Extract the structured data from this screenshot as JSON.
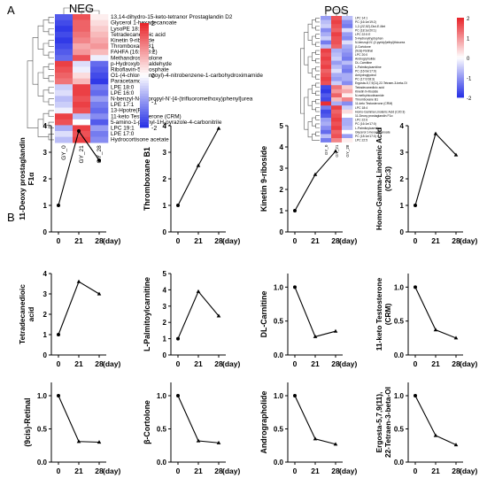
{
  "panel_labels": {
    "a": "A",
    "b": "B"
  },
  "heatmaps": [
    {
      "title": "NEG",
      "columns": [
        "GY_0",
        "GY_21",
        "GY_28"
      ],
      "rows": [
        "13,14-dihydro-15-keto-tetranor Prostaglandin D2",
        "Glycerol 1-hexadecanoate",
        "LysoPE 18:2",
        "Tetradecanedioic acid",
        "Kinetin 9-riboside",
        "Thromboxane B1",
        "FAHFA (16:0/18:2)",
        "Methandrostenolone",
        "p-Hydroxybenzaldehyde",
        "Riboflavin-5-phosphate",
        "O1-(4-chlorobenzoyl)-4-nitrobenzene-1-carbohydroximamide",
        "Paracetamol",
        "LPE 18:0",
        "LPE 16:0",
        "N-benzyl-N-isopropyl-N'-[4-(trifluoromethoxy)phenyl]urea",
        "LPE 17:1",
        "13-Hpotre(R)",
        "11-keto Testosterone (CRM)",
        "5-amino-1-phenyl-1H-pyrazole-4-carbonitrile",
        "LPC 19:1",
        "LPE 17:0",
        "Hydrocortisone acetate"
      ],
      "values": [
        [
          -1.0,
          1.0,
          0.1
        ],
        [
          -1.1,
          0.9,
          0.2
        ],
        [
          -1.2,
          0.9,
          0.3
        ],
        [
          -1.1,
          0.8,
          0.4
        ],
        [
          -1.2,
          0.7,
          0.5
        ],
        [
          -1.1,
          0.5,
          0.6
        ],
        [
          -1.0,
          0.6,
          0.4
        ],
        [
          -0.9,
          1.0,
          -0.1
        ],
        [
          1.1,
          -0.2,
          -0.9
        ],
        [
          1.0,
          -0.1,
          -1.0
        ],
        [
          0.9,
          0.2,
          -1.1
        ],
        [
          0.8,
          0.4,
          -1.2
        ],
        [
          -0.3,
          1.1,
          -0.8
        ],
        [
          -0.2,
          1.1,
          -0.9
        ],
        [
          -0.4,
          1.0,
          -0.6
        ],
        [
          -0.3,
          1.1,
          -0.8
        ],
        [
          -0.1,
          1.0,
          -0.9
        ],
        [
          1.1,
          -0.4,
          -0.7
        ],
        [
          1.0,
          0.0,
          -1.0
        ],
        [
          -0.5,
          1.1,
          -0.6
        ],
        [
          -0.2,
          1.0,
          -0.8
        ],
        [
          -0.4,
          1.1,
          -0.7
        ]
      ],
      "scale_ticks": [
        "2",
        "1",
        "0",
        "-1",
        "-2"
      ]
    },
    {
      "title": "POS",
      "columns": [
        "GY_0",
        "GY_21",
        "GY_28"
      ],
      "rows": [
        "LPC 14:1",
        "PC (16:1e/19:2)",
        "1,2-(2Z,5Z)-Diol-E-Met",
        "PC (18:1e/20:1)",
        "LPC 22:5 E",
        "5-Hydroxytryptophan",
        "N-benzoyl-N'-(2-pyridyl)ethyl)thiourea",
        "β-Cortolone",
        "(9cis)-Retinal",
        "LPC 20:0",
        "Androgrpholide",
        "DL-Carnitine",
        "L-Palmitoylcarnitine",
        "PC (16:0e/17:0)",
        "Anhydroglycinol",
        "PC (17:0/18:3)",
        "Ergosta-5,7,9(11),22-Tetraen-3-beta-Ol",
        "Tetradecanedioic acid",
        "Kinetin 9-riboside",
        "N-methylnicotinamide",
        "Thromboxane B1",
        "11-keto Testosterone (CRM)",
        "LPC 18:4",
        "Homo-Gamma-Linolenic Acid (C20:3)",
        "11-Deoxy prostaglandin F1α",
        "LPC 22:6",
        "PC (16:1e/17:0)",
        "L-Palmitoylcarnitine",
        "Glycerol 1-hexadecanoate",
        "PC (18:1e/17:0)",
        "LPC 22:5"
      ],
      "values": [
        [
          -0.6,
          1.0,
          -0.4
        ],
        [
          -0.4,
          1.1,
          -0.7
        ],
        [
          -0.3,
          1.0,
          -0.8
        ],
        [
          -0.7,
          0.9,
          -0.2
        ],
        [
          -0.5,
          1.1,
          -0.6
        ],
        [
          -0.3,
          1.0,
          -0.7
        ],
        [
          -0.8,
          1.0,
          -0.2
        ],
        [
          -0.4,
          0.9,
          -0.5
        ],
        [
          1.1,
          -0.5,
          -0.6
        ],
        [
          1.0,
          -0.4,
          -0.7
        ],
        [
          1.1,
          -0.3,
          -0.8
        ],
        [
          1.0,
          -0.6,
          -0.4
        ],
        [
          1.1,
          -0.4,
          -0.7
        ],
        [
          0.9,
          -0.2,
          -0.8
        ],
        [
          1.0,
          -0.5,
          -0.5
        ],
        [
          1.1,
          -0.6,
          -0.5
        ],
        [
          1.0,
          -0.3,
          -0.7
        ],
        [
          -1.1,
          0.8,
          0.3
        ],
        [
          -1.2,
          0.6,
          0.5
        ],
        [
          -1.0,
          0.9,
          0.1
        ],
        [
          -1.1,
          0.4,
          0.7
        ],
        [
          1.2,
          -0.5,
          -0.7
        ],
        [
          -0.8,
          1.1,
          -0.3
        ],
        [
          -1.1,
          0.9,
          0.2
        ],
        [
          -1.0,
          1.0,
          0.0
        ],
        [
          -0.6,
          1.1,
          -0.5
        ],
        [
          -0.5,
          1.0,
          -0.5
        ],
        [
          -0.7,
          1.1,
          -0.4
        ],
        [
          -0.9,
          0.9,
          0.0
        ],
        [
          -0.4,
          1.0,
          -0.6
        ],
        [
          -0.8,
          0.7,
          0.1
        ]
      ],
      "scale_ticks": [
        "2",
        "1",
        "0",
        "-1",
        "-2"
      ]
    }
  ],
  "chart_data": [
    {
      "type": "line",
      "ylabel": "11-Deoxy prostaglandin F1α",
      "x": [
        "0",
        "21",
        "28"
      ],
      "values": [
        1.0,
        3.8,
        2.7
      ],
      "ylim": [
        0,
        4
      ],
      "yticks": [
        "0",
        "1",
        "2",
        "3",
        "4"
      ],
      "xlabel": "",
      "marker": "circle"
    },
    {
      "type": "line",
      "ylabel": "Thromboxane B1",
      "x": [
        "0",
        "21",
        "28"
      ],
      "values": [
        1.0,
        2.5,
        3.9
      ],
      "ylim": [
        0,
        4
      ],
      "yticks": [
        "0",
        "1",
        "2",
        "3",
        "4"
      ],
      "xlabel": "",
      "marker": "triangle"
    },
    {
      "type": "line",
      "ylabel": "Kinetin 9-riboside",
      "x": [
        "0",
        "21",
        "28"
      ],
      "values": [
        1.0,
        2.7,
        3.8
      ],
      "ylim": [
        0,
        5
      ],
      "yticks": [
        "0",
        "1",
        "2",
        "3",
        "4",
        "5"
      ],
      "xlabel": "",
      "marker": "triangle"
    },
    {
      "type": "line",
      "ylabel": "Homo-Gamma-Linolenic Acid (C20:3)",
      "x": [
        "0",
        "21",
        "28"
      ],
      "values": [
        1.0,
        3.7,
        2.9
      ],
      "ylim": [
        0,
        4
      ],
      "yticks": [
        "0",
        "1",
        "2",
        "3",
        "4"
      ],
      "xlabel": "",
      "marker": "triangle"
    },
    {
      "type": "line",
      "ylabel": "Tetradecanedioic acid",
      "x": [
        "0",
        "21",
        "28"
      ],
      "values": [
        1.0,
        3.6,
        3.0
      ],
      "ylim": [
        0,
        4
      ],
      "yticks": [
        "0",
        "1",
        "2",
        "3",
        "4"
      ],
      "xlabel": "",
      "marker": "triangle"
    },
    {
      "type": "line",
      "ylabel": "L-Palmitoylcarnitine",
      "x": [
        "0",
        "21",
        "28"
      ],
      "values": [
        1.0,
        3.9,
        2.4
      ],
      "ylim": [
        0,
        5
      ],
      "yticks": [
        "0",
        "1",
        "2",
        "3",
        "4",
        "5"
      ],
      "xlabel": "",
      "marker": "triangle"
    },
    {
      "type": "line",
      "ylabel": "DL-Carnitine",
      "x": [
        "0",
        "21",
        "28"
      ],
      "values": [
        1.0,
        0.27,
        0.35
      ],
      "ylim": [
        0,
        1.2
      ],
      "yticks": [
        "0.0",
        "0.5",
        "1.0"
      ],
      "xlabel": "",
      "marker": "triangle"
    },
    {
      "type": "line",
      "ylabel": "11-keto Testosterone (CRM)",
      "x": [
        "0",
        "21",
        "28"
      ],
      "values": [
        1.0,
        0.37,
        0.25
      ],
      "ylim": [
        0,
        1.2
      ],
      "yticks": [
        "0.0",
        "0.5",
        "1.0"
      ],
      "xlabel": "",
      "marker": "triangle"
    },
    {
      "type": "line",
      "ylabel": "(9cis)-Retinal",
      "x": [
        "0",
        "21",
        "28"
      ],
      "values": [
        1.0,
        0.31,
        0.3
      ],
      "ylim": [
        0,
        1.2
      ],
      "yticks": [
        "0.0",
        "0.5",
        "1.0"
      ],
      "xlabel": "",
      "marker": "triangle"
    },
    {
      "type": "line",
      "ylabel": "β-Cortolone",
      "x": [
        "0",
        "21",
        "28"
      ],
      "values": [
        1.0,
        0.32,
        0.29
      ],
      "ylim": [
        0,
        1.2
      ],
      "yticks": [
        "0.0",
        "0.5",
        "1.0"
      ],
      "xlabel": "",
      "marker": "triangle"
    },
    {
      "type": "line",
      "ylabel": "Andrographolide",
      "x": [
        "0",
        "21",
        "28"
      ],
      "values": [
        1.0,
        0.35,
        0.27
      ],
      "ylim": [
        0,
        1.2
      ],
      "yticks": [
        "0.0",
        "0.5",
        "1.0"
      ],
      "xlabel": "",
      "marker": "triangle"
    },
    {
      "type": "line",
      "ylabel": "Ergosta-5,7,9(11), 22-Tetraen-3-beta-Ol",
      "x": [
        "0",
        "21",
        "28"
      ],
      "values": [
        1.0,
        0.4,
        0.26
      ],
      "ylim": [
        0,
        1.2
      ],
      "yticks": [
        "0.0",
        "0.5",
        "1.0"
      ],
      "xlabel": "",
      "marker": "triangle"
    }
  ],
  "x_unit_label": "(day)",
  "colors": {
    "high": "#e8262c",
    "mid": "#ffffff",
    "low": "#2832e6",
    "line": "#000000"
  }
}
